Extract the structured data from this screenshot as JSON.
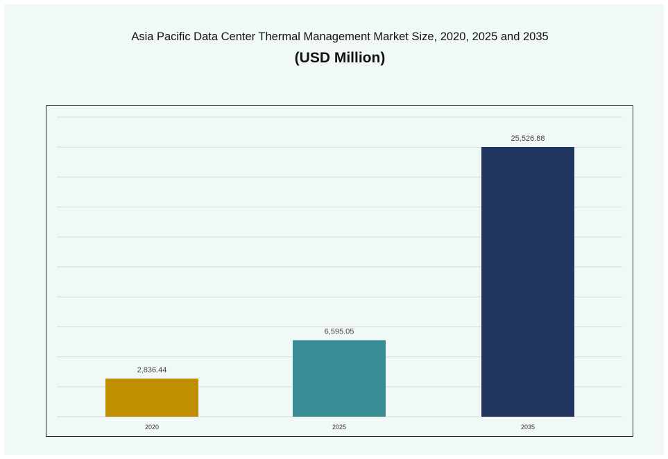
{
  "chart_data": {
    "type": "bar",
    "title": "Asia Pacific Data Center Thermal Management Market Size, 2020, 2025 and 2035",
    "subtitle": "(USD Million)",
    "categories": [
      "2020",
      "2025",
      "2035"
    ],
    "values": [
      2836.44,
      6595.05,
      25526.88
    ],
    "data_labels": [
      "2,836.44",
      "6,595.05",
      "25,526.88"
    ],
    "colors": [
      "#c08f00",
      "#3b8d95",
      "#21365f"
    ],
    "xlabel": "",
    "ylabel": "",
    "ylim": [
      -900,
      28450
    ],
    "grid": true,
    "legend": "none"
  }
}
